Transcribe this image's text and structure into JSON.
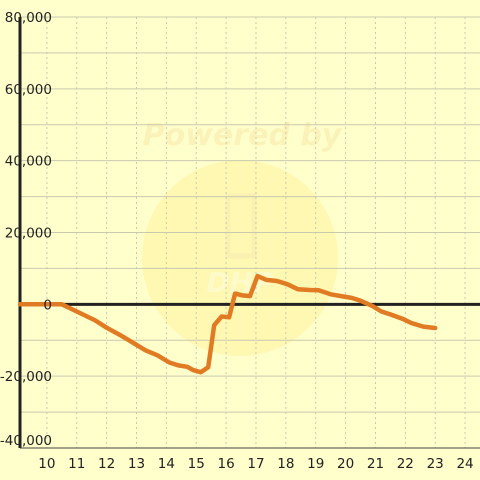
{
  "chart_data": {
    "type": "line",
    "title": "",
    "xlabel": "",
    "ylabel": "",
    "xlim": [
      9.1,
      24.5
    ],
    "ylim": [
      -40000,
      80000
    ],
    "x_ticks": [
      10,
      11,
      12,
      13,
      14,
      15,
      16,
      17,
      18,
      19,
      20,
      21,
      22,
      23,
      24
    ],
    "y_ticks": [
      -40000,
      -20000,
      0,
      20000,
      40000,
      60000,
      80000
    ],
    "y_tick_labels": [
      "-40,000",
      "-20,000",
      "0",
      "20,000",
      "40,000",
      "60,000",
      "80,000"
    ],
    "grid": true,
    "legend": "none",
    "series": [
      {
        "color": "#e07b24",
        "points": [
          [
            9.1,
            0
          ],
          [
            10.5,
            0
          ],
          [
            10.8,
            -1200
          ],
          [
            11.2,
            -2800
          ],
          [
            11.6,
            -4400
          ],
          [
            12.0,
            -6500
          ],
          [
            12.5,
            -8800
          ],
          [
            12.9,
            -10800
          ],
          [
            13.3,
            -12800
          ],
          [
            13.7,
            -14200
          ],
          [
            14.1,
            -16200
          ],
          [
            14.4,
            -17000
          ],
          [
            14.7,
            -17400
          ],
          [
            14.9,
            -18300
          ],
          [
            15.15,
            -18900
          ],
          [
            15.4,
            -17500
          ],
          [
            15.6,
            -5800
          ],
          [
            15.85,
            -3400
          ],
          [
            16.1,
            -3600
          ],
          [
            16.3,
            3000
          ],
          [
            16.55,
            2500
          ],
          [
            16.8,
            2300
          ],
          [
            17.05,
            7900
          ],
          [
            17.35,
            6800
          ],
          [
            17.7,
            6500
          ],
          [
            18.05,
            5600
          ],
          [
            18.4,
            4200
          ],
          [
            18.8,
            4000
          ],
          [
            19.1,
            3900
          ],
          [
            19.5,
            2800
          ],
          [
            19.9,
            2200
          ],
          [
            20.2,
            1800
          ],
          [
            20.5,
            1000
          ],
          [
            20.9,
            -500
          ],
          [
            21.2,
            -2000
          ],
          [
            21.5,
            -2800
          ],
          [
            21.9,
            -4000
          ],
          [
            22.2,
            -5200
          ],
          [
            22.6,
            -6200
          ],
          [
            23.0,
            -6600
          ]
        ]
      }
    ]
  },
  "watermark": {
    "line1": "Powered by",
    "line2": "DHP"
  }
}
